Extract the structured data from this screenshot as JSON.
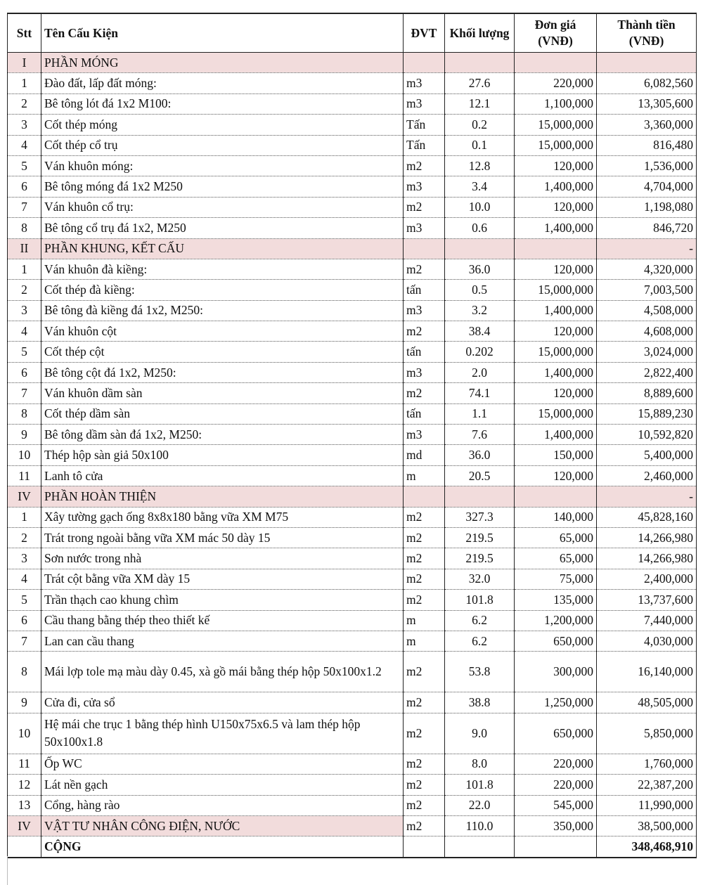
{
  "headers": {
    "stt": "Stt",
    "name": "Tên Cấu Kiện",
    "unit": "ĐVT",
    "qty": "Khối lượng",
    "price": "Đơn giá (VNĐ)",
    "total": "Thành tiền (VNĐ)"
  },
  "rows": [
    {
      "type": "sec",
      "stt": "I",
      "name": "PHẦN MÓNG",
      "unit": "",
      "qty": "",
      "price": "",
      "total": ""
    },
    {
      "stt": "1",
      "name": "Đào đất, lấp đất móng:",
      "unit": "m3",
      "qty": "27.6",
      "price": "220,000",
      "total": "6,082,560"
    },
    {
      "stt": "2",
      "name": "Bê tông lót đá 1x2 M100:",
      "unit": "m3",
      "qty": "12.1",
      "price": "1,100,000",
      "total": "13,305,600"
    },
    {
      "stt": "3",
      "name": "Cốt thép móng",
      "unit": "Tấn",
      "qty": "0.2",
      "price": "15,000,000",
      "total": "3,360,000"
    },
    {
      "stt": "4",
      "name": "Cốt thép cổ trụ",
      "unit": "Tấn",
      "qty": "0.1",
      "price": "15,000,000",
      "total": "816,480"
    },
    {
      "stt": "5",
      "name": "Ván khuôn móng:",
      "unit": "m2",
      "qty": "12.8",
      "price": "120,000",
      "total": "1,536,000"
    },
    {
      "stt": "6",
      "name": "Bê tông móng đá 1x2 M250",
      "unit": "m3",
      "qty": "3.4",
      "price": "1,400,000",
      "total": "4,704,000"
    },
    {
      "stt": "7",
      "name": "Ván khuôn cổ trụ:",
      "unit": "m2",
      "qty": "10.0",
      "price": "120,000",
      "total": "1,198,080"
    },
    {
      "stt": "8",
      "name": "Bê tông cổ trụ đá 1x2, M250",
      "unit": "m3",
      "qty": "0.6",
      "price": "1,400,000",
      "total": "846,720"
    },
    {
      "type": "sec",
      "stt": "II",
      "name": "PHẦN KHUNG, KẾT CẤU",
      "unit": "",
      "qty": "",
      "price": "",
      "total": "-"
    },
    {
      "stt": "1",
      "name": "Ván khuôn đà kiềng:",
      "unit": "m2",
      "qty": "36.0",
      "price": "120,000",
      "total": "4,320,000"
    },
    {
      "stt": "2",
      "name": "Cốt thép đà kiềng:",
      "unit": "tấn",
      "qty": "0.5",
      "price": "15,000,000",
      "total": "7,003,500"
    },
    {
      "stt": "3",
      "name": "Bê tông đà kiềng đá 1x2, M250:",
      "unit": "m3",
      "qty": "3.2",
      "price": "1,400,000",
      "total": "4,508,000"
    },
    {
      "stt": "4",
      "name": "Ván khuôn cột",
      "unit": "m2",
      "qty": "38.4",
      "price": "120,000",
      "total": "4,608,000"
    },
    {
      "stt": "5",
      "name": "Cốt thép cột",
      "unit": "tấn",
      "qty": "0.202",
      "price": "15,000,000",
      "total": "3,024,000"
    },
    {
      "stt": "6",
      "name": "Bê tông cột đá 1x2, M250:",
      "unit": "m3",
      "qty": "2.0",
      "price": "1,400,000",
      "total": "2,822,400"
    },
    {
      "stt": "7",
      "name": "Ván khuôn dầm sàn",
      "unit": "m2",
      "qty": "74.1",
      "price": "120,000",
      "total": "8,889,600"
    },
    {
      "stt": "8",
      "name": "Cốt thép dầm sàn",
      "unit": "tấn",
      "qty": "1.1",
      "price": "15,000,000",
      "total": "15,889,230"
    },
    {
      "stt": "9",
      "name": "Bê tông dầm sàn đá 1x2, M250:",
      "unit": "m3",
      "qty": "7.6",
      "price": "1,400,000",
      "total": "10,592,820"
    },
    {
      "stt": "10",
      "name": "Thép hộp sàn giả 50x100",
      "unit": "md",
      "qty": "36.0",
      "price": "150,000",
      "total": "5,400,000"
    },
    {
      "stt": "11",
      "name": "Lanh tô cửa",
      "unit": "m",
      "qty": "20.5",
      "price": "120,000",
      "total": "2,460,000"
    },
    {
      "type": "sec",
      "stt": "IV",
      "name": "PHẦN HOÀN THIỆN",
      "unit": "",
      "qty": "",
      "price": "",
      "total": "-"
    },
    {
      "stt": "1",
      "name": "Xây tường gạch ống 8x8x180 bằng vữa XM M75",
      "unit": "m2",
      "qty": "327.3",
      "price": "140,000",
      "total": "45,828,160"
    },
    {
      "stt": "2",
      "name": "Trát trong ngoài bằng vữa XM mác 50 dày 15",
      "unit": "m2",
      "qty": "219.5",
      "price": "65,000",
      "total": "14,266,980"
    },
    {
      "stt": "3",
      "name": "Sơn nước trong nhà",
      "unit": "m2",
      "qty": "219.5",
      "price": "65,000",
      "total": "14,266,980"
    },
    {
      "stt": "4",
      "name": "Trát cột bằng vữa XM dày 15",
      "unit": "m2",
      "qty": "32.0",
      "price": "75,000",
      "total": "2,400,000"
    },
    {
      "stt": "5",
      "name": "Trần thạch cao khung chìm",
      "unit": "m2",
      "qty": "101.8",
      "price": "135,000",
      "total": "13,737,600"
    },
    {
      "stt": "6",
      "name": "Cầu thang bằng thép theo thiết kế",
      "unit": "m",
      "qty": "6.2",
      "price": "1,200,000",
      "total": "7,440,000"
    },
    {
      "stt": "7",
      "name": "Lan can cầu thang",
      "unit": "m",
      "qty": "6.2",
      "price": "650,000",
      "total": "4,030,000"
    },
    {
      "type": "wrap",
      "stt": "8",
      "name": "Mái lợp tole mạ màu dày 0.45, xà gồ mái bằng thép hộp 50x100x1.2",
      "unit": "m2",
      "qty": "53.8",
      "price": "300,000",
      "total": "16,140,000"
    },
    {
      "stt": "9",
      "name": "Cửa đi, cửa sổ",
      "unit": "m2",
      "qty": "38.8",
      "price": "1,250,000",
      "total": "48,505,000"
    },
    {
      "type": "wrap",
      "stt": "10",
      "name": "Hệ mái che trục 1 bằng thép hình U150x75x6.5 và lam thép hộp 50x100x1.8",
      "unit": "m2",
      "qty": "9.0",
      "price": "650,000",
      "total": "5,850,000"
    },
    {
      "stt": "11",
      "name": "Ốp WC",
      "unit": "m2",
      "qty": "8.0",
      "price": "220,000",
      "total": "1,760,000"
    },
    {
      "stt": "12",
      "name": "Lát nền gạch",
      "unit": "m2",
      "qty": "101.8",
      "price": "220,000",
      "total": "22,387,200"
    },
    {
      "stt": "13",
      "name": "Cổng, hàng rào",
      "unit": "m2",
      "qty": "22.0",
      "price": "545,000",
      "total": "11,990,000"
    },
    {
      "type": "sec2",
      "stt": "IV",
      "name": "VẬT TƯ NHÂN CÔNG ĐIỆN, NƯỚC",
      "unit": "m2",
      "qty": "110.0",
      "price": "350,000",
      "total": "38,500,000"
    },
    {
      "type": "tot",
      "stt": "",
      "name": "CỘNG",
      "unit": "",
      "qty": "",
      "price": "",
      "total": "348,468,910"
    }
  ]
}
